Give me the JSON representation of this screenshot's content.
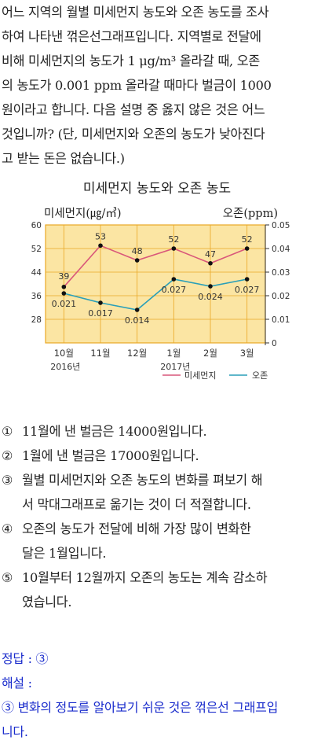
{
  "question": {
    "lines": [
      "어느 지역의 월별 미세먼지 농도와 오존 농도를 조사",
      "하여 나타낸 꺾은선그래프입니다. 지역별로 전달에",
      "비해 미세먼지의 농도가 1 μg/m³ 올라갈 때, 오존",
      "의 농도가 0.001 ppm 올라갈 때마다 벌금이 1000",
      "원이라고 합니다. 다음 설명 중 옳지 않은 것은 어느",
      "것입니까? (단, 미세먼지와 오존의 농도가 낮아진다",
      "고 받는 돈은 없습니다.)"
    ]
  },
  "chart_data": {
    "type": "line",
    "title": "미세먼지 농도와 오존 농도",
    "ylabel_left": "미세먼지(㎍/㎥)",
    "ylabel_right": "오존(ppm)",
    "categories": [
      "10월",
      "11월",
      "12월",
      "1월",
      "2월",
      "3월"
    ],
    "year_labels": [
      {
        "category": "10월",
        "label": "2016년"
      },
      {
        "category": "1월",
        "label": "2017년"
      }
    ],
    "left_axis": {
      "min": 20,
      "max": 60,
      "ticks": [
        28,
        36,
        44,
        52,
        60
      ]
    },
    "right_axis": {
      "min": 0,
      "max": 0.05,
      "ticks": [
        "0",
        "0.01",
        "0.02",
        "0.03",
        "0.04",
        "0.05"
      ]
    },
    "series": [
      {
        "name": "미세먼지",
        "axis": "left",
        "color": "#d9577a",
        "values": [
          39,
          53,
          48,
          52,
          47,
          52
        ],
        "labels": [
          "39",
          "53",
          "48",
          "52",
          "47",
          "52"
        ]
      },
      {
        "name": "오존",
        "axis": "right",
        "color": "#2a9fb8",
        "values": [
          0.021,
          0.017,
          0.014,
          0.027,
          0.024,
          0.027
        ],
        "labels": [
          "0.021",
          "0.017",
          "0.014",
          "0.027",
          "0.024",
          "0.027"
        ]
      }
    ],
    "plot_background": "#fbe5a3",
    "frame_color": "#e9a825",
    "grid": true,
    "legend_position": "bottom-right"
  },
  "options": [
    {
      "num": "①",
      "lines": [
        "11월에 낸 벌금은 14000원입니다."
      ]
    },
    {
      "num": "②",
      "lines": [
        "1월에 낸 벌금은 17000원입니다."
      ]
    },
    {
      "num": "③",
      "lines": [
        "월별 미세먼지와 오존 농도의 변화를 펴보기 해",
        "서 막대그래프로 옮기는 것이 더 적절합니다."
      ]
    },
    {
      "num": "④",
      "lines": [
        "오존의 농도가 전달에 비해 가장 많이 변화한",
        "달은 1월입니다."
      ]
    },
    {
      "num": "⑤",
      "lines": [
        "10월부터 12월까지 오존의 농도는 계속 감소하",
        "였습니다."
      ]
    }
  ],
  "answer": {
    "label": "정답 : ③",
    "explain_label": "해설 :",
    "explain_lines": [
      "③ 변화의 정도를 알아보기 쉬운 것은 꺾은선 그래프입",
      "니다."
    ]
  }
}
